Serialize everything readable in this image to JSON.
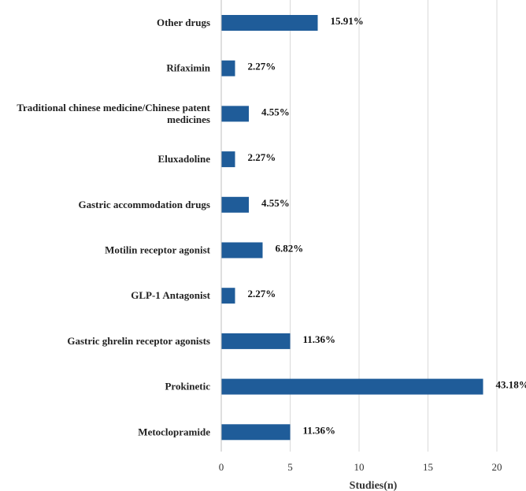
{
  "chart_data": {
    "type": "bar",
    "orientation": "horizontal",
    "categories": [
      "Other drugs",
      "Rifaximin",
      "Traditional chinese medicine/Chinese patent medicines",
      "Eluxadoline",
      "Gastric accommodation drugs",
      "Motilin receptor agonist",
      "GLP-1 Antagonist",
      "Gastric ghrelin receptor agonists",
      "Prokinetic",
      "Metoclopramide"
    ],
    "category_lines": [
      [
        "Other drugs"
      ],
      [
        "Rifaximin"
      ],
      [
        "Traditional chinese medicine/Chinese patent",
        "medicines"
      ],
      [
        "Eluxadoline"
      ],
      [
        "Gastric accommodation drugs"
      ],
      [
        "Motilin receptor agonist"
      ],
      [
        "GLP-1 Antagonist"
      ],
      [
        "Gastric ghrelin receptor agonists"
      ],
      [
        "Prokinetic"
      ],
      [
        "Metoclopramide"
      ]
    ],
    "values": [
      7,
      1,
      2,
      1,
      2,
      3,
      1,
      5,
      19,
      5
    ],
    "data_labels": [
      "15.91%",
      "2.27%",
      "4.55%",
      "2.27%",
      "4.55%",
      "6.82%",
      "2.27%",
      "11.36%",
      "43.18%",
      "11.36%"
    ],
    "xlabel": "Studies(n)",
    "ylabel": "",
    "xlim": [
      0,
      20
    ],
    "xticks": [
      "0",
      "5",
      "10",
      "15",
      "20"
    ],
    "grid": true,
    "bar_color": "#1f5c99"
  }
}
